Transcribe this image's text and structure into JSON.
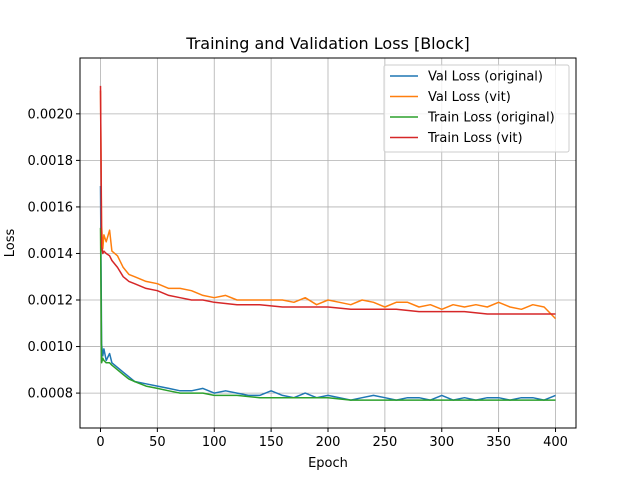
{
  "chart_data": {
    "type": "line",
    "title": "Training and Validation Loss [Block]",
    "xlabel": "Epoch",
    "ylabel": "Loss",
    "xlim": [
      -18,
      418
    ],
    "ylim": [
      0.00065,
      0.00224
    ],
    "xticks": [
      0,
      50,
      100,
      150,
      200,
      250,
      300,
      350,
      400
    ],
    "xtick_labels": [
      "0",
      "50",
      "100",
      "150",
      "200",
      "250",
      "300",
      "350",
      "400"
    ],
    "yticks": [
      0.0008,
      0.001,
      0.0012,
      0.0014,
      0.0016,
      0.0018,
      0.002
    ],
    "ytick_labels": [
      "0.0008",
      "0.0010",
      "0.0012",
      "0.0014",
      "0.0016",
      "0.0018",
      "0.0020"
    ],
    "grid": true,
    "legend_position": "top-right",
    "series": [
      {
        "name": "Val Loss (original)",
        "color": "#1f77b4",
        "x": [
          0,
          1,
          2,
          3,
          5,
          8,
          10,
          15,
          20,
          25,
          30,
          40,
          50,
          60,
          70,
          80,
          90,
          100,
          110,
          120,
          130,
          140,
          150,
          160,
          170,
          180,
          190,
          200,
          210,
          220,
          230,
          240,
          250,
          260,
          270,
          280,
          290,
          300,
          310,
          320,
          330,
          340,
          350,
          360,
          370,
          380,
          390,
          400
        ],
        "y": [
          0.00169,
          0.00101,
          0.00096,
          0.00099,
          0.00094,
          0.00097,
          0.00093,
          0.00091,
          0.00089,
          0.00087,
          0.00085,
          0.00084,
          0.00083,
          0.00082,
          0.00081,
          0.00081,
          0.00082,
          0.0008,
          0.00081,
          0.0008,
          0.00079,
          0.00079,
          0.00081,
          0.00079,
          0.00078,
          0.0008,
          0.00078,
          0.00079,
          0.00078,
          0.00077,
          0.00078,
          0.00079,
          0.00078,
          0.00077,
          0.00078,
          0.00078,
          0.00077,
          0.00079,
          0.00077,
          0.00078,
          0.00077,
          0.00078,
          0.00078,
          0.00077,
          0.00078,
          0.00078,
          0.00077,
          0.00079
        ]
      },
      {
        "name": "Val Loss (vit)",
        "color": "#ff7f0e",
        "x": [
          0,
          1,
          2,
          3,
          5,
          8,
          10,
          15,
          20,
          25,
          30,
          40,
          50,
          60,
          70,
          80,
          90,
          100,
          110,
          120,
          130,
          140,
          150,
          160,
          170,
          180,
          190,
          200,
          210,
          220,
          230,
          240,
          250,
          260,
          270,
          280,
          290,
          300,
          310,
          320,
          330,
          340,
          350,
          360,
          370,
          380,
          390,
          400
        ],
        "y": [
          0.0021,
          0.00152,
          0.00142,
          0.00148,
          0.00145,
          0.0015,
          0.00141,
          0.00139,
          0.00134,
          0.00131,
          0.0013,
          0.00128,
          0.00127,
          0.00125,
          0.00125,
          0.00124,
          0.00122,
          0.00121,
          0.00122,
          0.0012,
          0.0012,
          0.0012,
          0.0012,
          0.0012,
          0.00119,
          0.00121,
          0.00118,
          0.0012,
          0.00119,
          0.00118,
          0.0012,
          0.00119,
          0.00117,
          0.00119,
          0.00119,
          0.00117,
          0.00118,
          0.00116,
          0.00118,
          0.00117,
          0.00118,
          0.00117,
          0.00119,
          0.00117,
          0.00116,
          0.00118,
          0.00117,
          0.00112
        ]
      },
      {
        "name": "Train Loss (original)",
        "color": "#2ca02c",
        "x": [
          0,
          1,
          2,
          3,
          5,
          8,
          10,
          15,
          20,
          25,
          30,
          40,
          50,
          60,
          70,
          80,
          90,
          100,
          120,
          140,
          160,
          180,
          200,
          220,
          240,
          260,
          280,
          300,
          320,
          340,
          360,
          380,
          400
        ],
        "y": [
          0.00151,
          0.00093,
          0.00095,
          0.00094,
          0.00093,
          0.00093,
          0.00092,
          0.0009,
          0.00088,
          0.00086,
          0.00085,
          0.00083,
          0.00082,
          0.00081,
          0.0008,
          0.0008,
          0.0008,
          0.00079,
          0.00079,
          0.00078,
          0.00078,
          0.00078,
          0.00078,
          0.00077,
          0.00077,
          0.00077,
          0.00077,
          0.00077,
          0.00077,
          0.00077,
          0.00077,
          0.00077,
          0.00077
        ]
      },
      {
        "name": "Train Loss (vit)",
        "color": "#d62728",
        "x": [
          0,
          1,
          2,
          3,
          5,
          8,
          10,
          15,
          20,
          25,
          30,
          40,
          50,
          60,
          70,
          80,
          90,
          100,
          120,
          140,
          160,
          180,
          200,
          220,
          240,
          260,
          280,
          300,
          320,
          340,
          360,
          380,
          400
        ],
        "y": [
          0.00212,
          0.00143,
          0.0014,
          0.00141,
          0.0014,
          0.00139,
          0.00137,
          0.00134,
          0.0013,
          0.00128,
          0.00127,
          0.00125,
          0.00124,
          0.00122,
          0.00121,
          0.0012,
          0.0012,
          0.00119,
          0.00118,
          0.00118,
          0.00117,
          0.00117,
          0.00117,
          0.00116,
          0.00116,
          0.00116,
          0.00115,
          0.00115,
          0.00115,
          0.00114,
          0.00114,
          0.00114,
          0.00114
        ]
      }
    ]
  }
}
